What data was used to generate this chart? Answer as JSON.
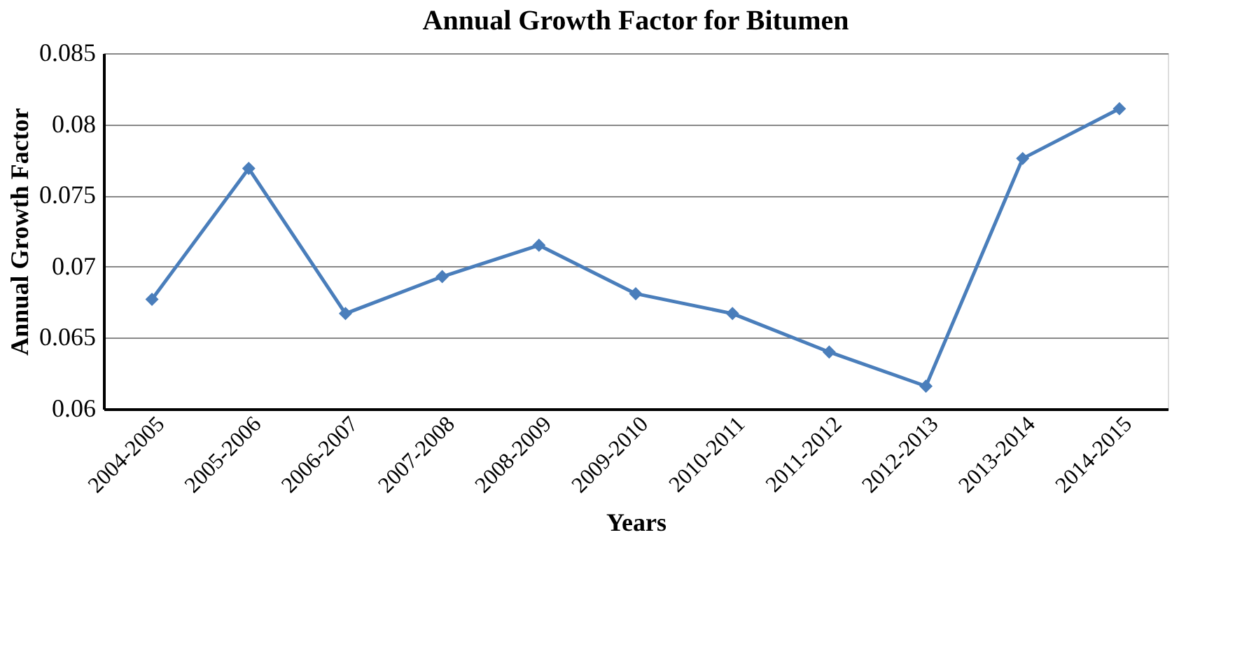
{
  "chart_data": {
    "type": "line",
    "title": "Annual Growth Factor for Bitumen",
    "xlabel": "Years",
    "ylabel": "Annual Growth Factor",
    "categories": [
      "2004-2005",
      "2005-2006",
      "2006-2007",
      "2007-2008",
      "2008-2009",
      "2009-2010",
      "2010-2011",
      "2011-2012",
      "2012-2013",
      "2013-2014",
      "2014-2015"
    ],
    "series": [
      {
        "color": "#4a7ebb",
        "values": [
          0.0677,
          0.0769,
          0.0667,
          0.0693,
          0.0715,
          0.0681,
          0.0667,
          0.064,
          0.0616,
          0.0776,
          0.0811
        ]
      }
    ],
    "ylim": [
      0.06,
      0.085
    ],
    "yticks": [
      0.06,
      0.065,
      0.07,
      0.075,
      0.08,
      0.085
    ],
    "grid": "y",
    "marker": "diamond",
    "line_style": "solid"
  }
}
